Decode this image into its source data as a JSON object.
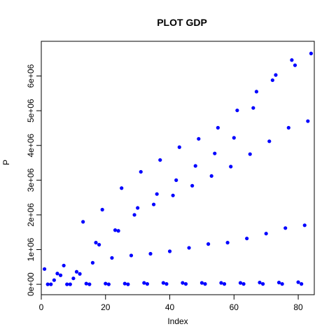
{
  "chart_data": {
    "type": "scatter",
    "title": "PLOT GDP",
    "xlabel": "Index",
    "ylabel": "P",
    "xlim": [
      0,
      85
    ],
    "ylim": [
      -300000,
      7000000
    ],
    "x_ticks": [
      0,
      20,
      40,
      60,
      80
    ],
    "x_tick_labels": [
      "0",
      "20",
      "40",
      "60",
      "80"
    ],
    "y_ticks": [
      0,
      1000000,
      2000000,
      3000000,
      4000000,
      5000000,
      6000000
    ],
    "y_tick_labels": [
      "0e+00",
      "1e+06",
      "2e+06",
      "3e+06",
      "4e+06",
      "5e+06",
      "6e+06"
    ],
    "grid": false,
    "marker_color": "#0000ff",
    "series": [
      {
        "x": [
          1,
          2,
          3,
          4,
          5,
          6,
          7,
          8,
          9,
          10,
          11,
          12,
          13,
          14,
          15,
          16,
          17,
          18,
          19,
          20,
          21,
          22,
          23,
          24,
          25,
          26,
          27,
          28,
          29,
          30,
          31,
          32,
          33,
          34,
          35,
          36,
          37,
          38,
          39,
          40,
          41,
          42,
          43,
          44,
          45,
          46,
          47,
          48,
          49,
          50,
          51,
          52,
          53,
          54,
          55,
          56,
          57,
          58,
          59,
          60,
          61,
          62,
          63,
          64,
          65,
          66,
          67,
          68,
          69,
          70,
          71,
          72,
          73,
          74,
          75,
          76,
          77,
          78,
          79,
          80,
          81,
          82,
          83,
          84
        ],
        "values": [
          440000,
          0,
          0,
          120000,
          310000,
          260000,
          540000,
          0,
          0,
          170000,
          360000,
          300000,
          1800000,
          20000,
          0,
          620000,
          1200000,
          1140000,
          2150000,
          20000,
          0,
          760000,
          1560000,
          1540000,
          2770000,
          20000,
          0,
          830000,
          2000000,
          2200000,
          3240000,
          40000,
          10000,
          880000,
          2300000,
          2600000,
          3580000,
          40000,
          10000,
          950000,
          2560000,
          3000000,
          3950000,
          40000,
          10000,
          1050000,
          2840000,
          3410000,
          4190000,
          40000,
          10000,
          1160000,
          3120000,
          3770000,
          4510000,
          40000,
          10000,
          1200000,
          3390000,
          4220000,
          5010000,
          40000,
          10000,
          1320000,
          3750000,
          5080000,
          5550000,
          50000,
          10000,
          1460000,
          4120000,
          5880000,
          6030000,
          50000,
          10000,
          1620000,
          4510000,
          6460000,
          6310000,
          60000,
          10000,
          1700000,
          4700000,
          6650000
        ]
      }
    ]
  }
}
